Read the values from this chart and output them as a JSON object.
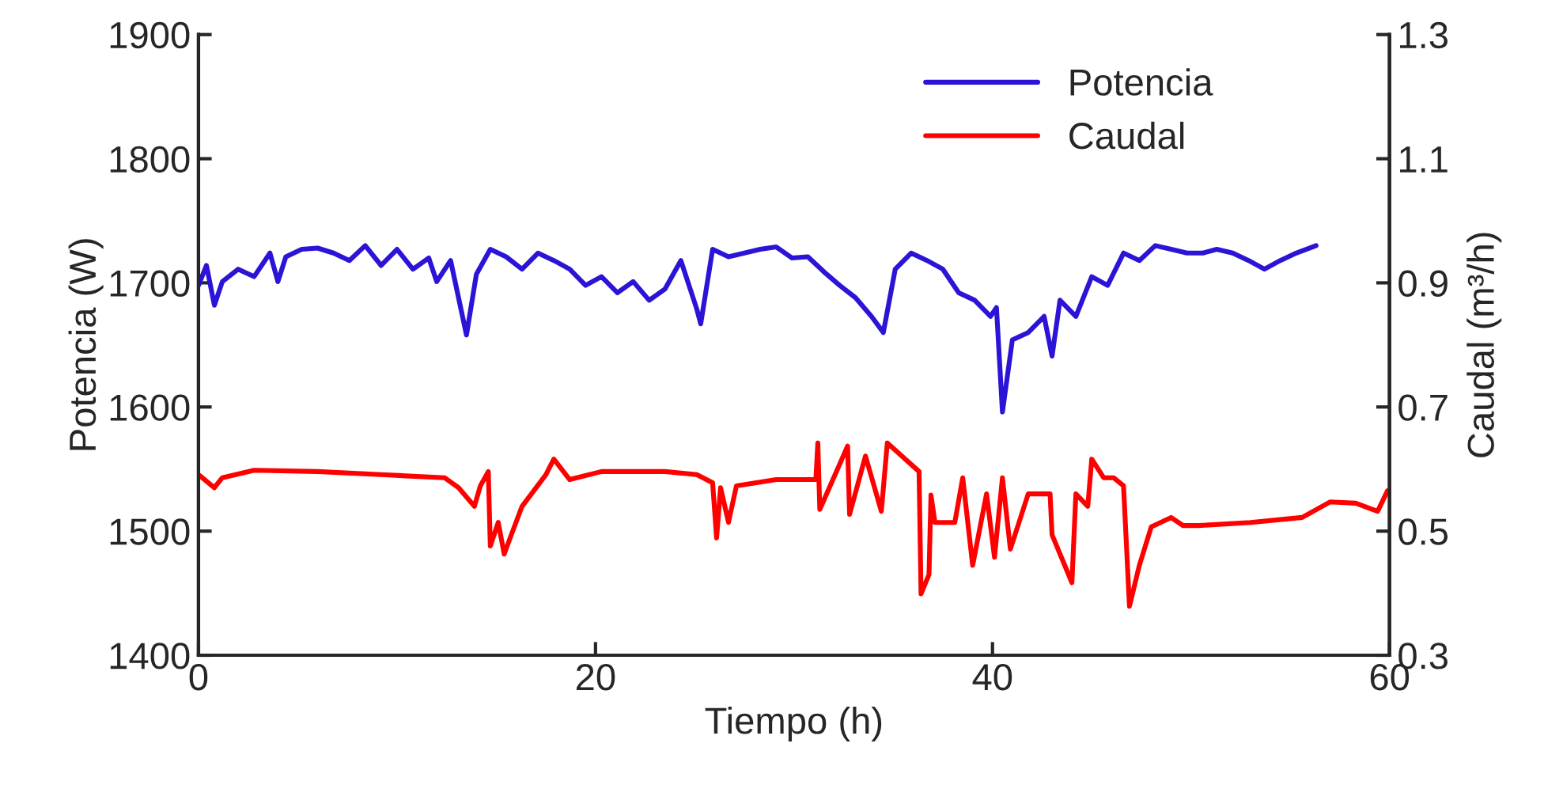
{
  "chart_data": {
    "type": "line",
    "xlabel": "Tiempo (h)",
    "ylabel": "Potencia (W)",
    "y2label": "Caudal (m³/h)",
    "xlim": [
      0,
      60
    ],
    "xticks": [
      0,
      20,
      40,
      60
    ],
    "ylim": [
      1400,
      1900
    ],
    "yticks": [
      1400,
      1500,
      1600,
      1700,
      1800,
      1900
    ],
    "y2lim": [
      0.3,
      1.3
    ],
    "y2ticks": [
      {
        "value": 0.3,
        "label": "0.3"
      },
      {
        "value": 0.5,
        "label": "0.5"
      },
      {
        "value": 0.7,
        "label": "0.7"
      },
      {
        "value": 0.9,
        "label": "0.9"
      },
      {
        "value": 1.1,
        "label": "1.1"
      },
      {
        "value": 1.3,
        "label": "1.3"
      }
    ],
    "grid": false,
    "legend": "top right",
    "marker": "none",
    "line_style": "solid",
    "series": [
      {
        "name": "Potencia",
        "color": "#2b14d6",
        "x": [
          0.0,
          0.4,
          0.8,
          1.2,
          2.0,
          2.8,
          3.6,
          4.0,
          4.4,
          5.2,
          6.0,
          6.8,
          7.6,
          8.4,
          9.2,
          10.0,
          10.8,
          11.6,
          12.0,
          12.7,
          13.1,
          13.5,
          14.0,
          14.7,
          15.5,
          16.3,
          17.1,
          17.9,
          18.7,
          19.5,
          20.3,
          21.1,
          21.9,
          22.7,
          23.5,
          24.3,
          25.1,
          25.3,
          25.9,
          26.7,
          27.5,
          28.3,
          29.1,
          29.9,
          30.7,
          31.5,
          32.3,
          33.1,
          33.9,
          34.5,
          35.1,
          35.9,
          36.7,
          37.5,
          38.3,
          39.1,
          39.9,
          40.2,
          40.5,
          41.0,
          41.8,
          42.6,
          43.0,
          43.4,
          44.2,
          45.0,
          45.8,
          46.6,
          47.4,
          48.2,
          49.0,
          49.8,
          50.6,
          51.3,
          52.1,
          52.9,
          53.7,
          54.5,
          55.3,
          56.3
        ],
        "values": [
          1698,
          1714,
          1682,
          1701,
          1711,
          1705,
          1724,
          1701,
          1721,
          1727,
          1728,
          1724,
          1718,
          1730,
          1714,
          1727,
          1711,
          1720,
          1701,
          1718,
          1688,
          1658,
          1707,
          1727,
          1721,
          1711,
          1724,
          1718,
          1711,
          1698,
          1705,
          1692,
          1701,
          1686,
          1695,
          1718,
          1679,
          1667,
          1727,
          1721,
          1724,
          1727,
          1729,
          1720,
          1721,
          1709,
          1698,
          1688,
          1673,
          1660,
          1711,
          1724,
          1718,
          1711,
          1692,
          1686,
          1673,
          1680,
          1596,
          1654,
          1660,
          1673,
          1641,
          1686,
          1673,
          1705,
          1698,
          1724,
          1718,
          1730,
          1727,
          1724,
          1724,
          1727,
          1724,
          1718,
          1711,
          1718,
          1724,
          1730
        ]
      },
      {
        "name": "Caudal",
        "color": "#ff0000",
        "axis": "y2",
        "x": [
          0.0,
          0.8,
          1.2,
          2.8,
          6.0,
          9.2,
          12.4,
          13.1,
          13.9,
          14.2,
          14.6,
          14.7,
          15.1,
          15.4,
          15.7,
          16.3,
          17.5,
          17.9,
          18.7,
          20.3,
          23.5,
          25.1,
          25.9,
          26.1,
          26.3,
          26.7,
          27.1,
          29.1,
          31.1,
          31.2,
          31.3,
          32.7,
          32.8,
          33.6,
          34.4,
          34.7,
          36.3,
          36.4,
          36.8,
          36.9,
          37.1,
          38.1,
          38.5,
          39.0,
          39.7,
          40.1,
          40.5,
          40.9,
          41.8,
          42.9,
          43.0,
          44.0,
          44.2,
          44.8,
          45.0,
          45.6,
          46.1,
          46.6,
          46.9,
          47.4,
          48.0,
          49.0,
          49.6,
          50.4,
          53.0,
          55.6,
          57.0,
          58.3,
          59.4,
          59.9
        ],
        "values": [
          0.591,
          0.57,
          0.586,
          0.598,
          0.596,
          0.591,
          0.586,
          0.57,
          0.54,
          0.573,
          0.596,
          0.476,
          0.514,
          0.463,
          0.489,
          0.54,
          0.591,
          0.616,
          0.583,
          0.596,
          0.596,
          0.591,
          0.578,
          0.489,
          0.57,
          0.514,
          0.573,
          0.583,
          0.583,
          0.642,
          0.535,
          0.637,
          0.527,
          0.621,
          0.532,
          0.642,
          0.596,
          0.399,
          0.43,
          0.558,
          0.514,
          0.514,
          0.586,
          0.445,
          0.56,
          0.458,
          0.586,
          0.471,
          0.56,
          0.56,
          0.494,
          0.417,
          0.56,
          0.54,
          0.616,
          0.586,
          0.586,
          0.573,
          0.379,
          0.445,
          0.507,
          0.522,
          0.509,
          0.509,
          0.514,
          0.522,
          0.547,
          0.545,
          0.532,
          0.565
        ]
      }
    ]
  }
}
